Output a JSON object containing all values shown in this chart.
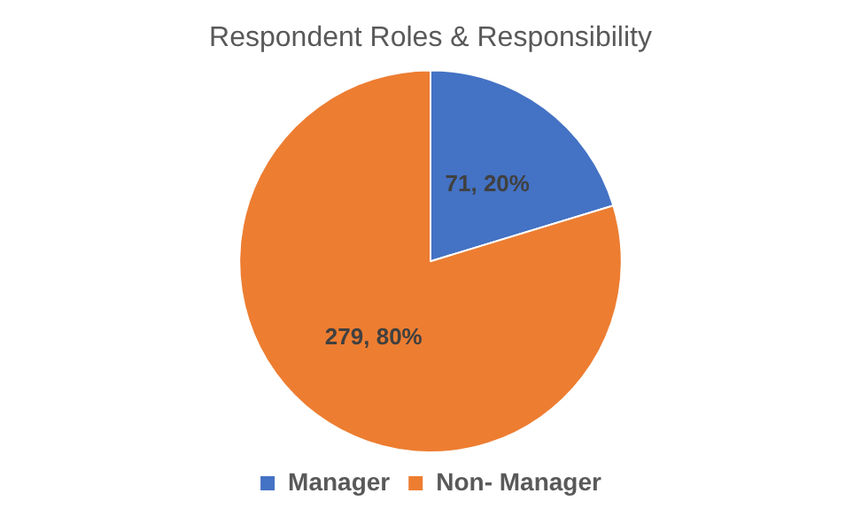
{
  "chart_data": {
    "type": "pie",
    "title": "Respondent Roles & Responsibility",
    "categories": [
      "Manager",
      "Non- Manager"
    ],
    "values": [
      71,
      279
    ],
    "colors": [
      "#4472c4",
      "#ed7d31"
    ],
    "value_labels": [
      "71, 20%",
      "279, 80%"
    ],
    "legend": "bottom"
  }
}
